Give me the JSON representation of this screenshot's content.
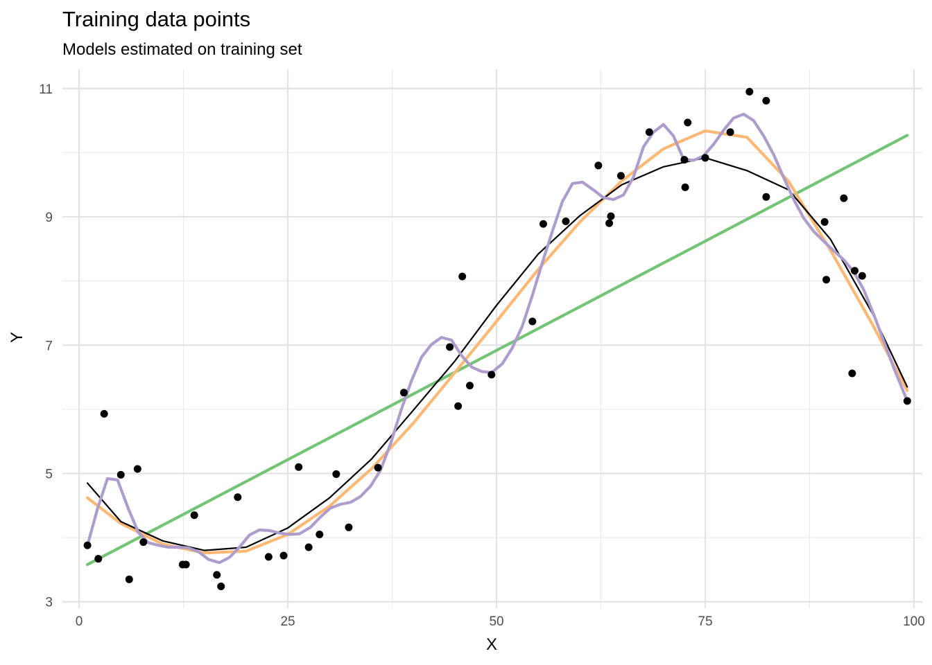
{
  "chart_data": {
    "type": "scatter",
    "title": "Training data points",
    "subtitle": "Models estimated on training set",
    "xlabel": "X",
    "ylabel": "Y",
    "xlim": [
      -2,
      101
    ],
    "ylim": [
      2.9,
      11.3
    ],
    "x_ticks": [
      0,
      25,
      50,
      75,
      100
    ],
    "y_ticks": [
      3,
      5,
      7,
      9,
      11
    ],
    "grid": true,
    "legend": "none",
    "points": {
      "x": [
        1,
        2.3,
        3,
        5,
        6,
        7,
        7.7,
        12.4,
        12.8,
        13.8,
        16.5,
        17,
        19,
        22.7,
        24.5,
        26.3,
        27.5,
        28.8,
        30.8,
        32.3,
        35.8,
        38.9,
        44.4,
        45.4,
        45.9,
        46.8,
        49.4,
        54.3,
        55.6,
        58.3,
        62.2,
        63.5,
        63.7,
        64.9,
        68.3,
        72.5,
        72.6,
        72.9,
        75,
        78,
        80.3,
        82.3,
        82.3,
        89.3,
        89.5,
        91.6,
        92.6,
        92.9,
        93.8,
        99.2
      ],
      "y": [
        3.88,
        3.67,
        5.93,
        4.98,
        3.35,
        5.07,
        3.93,
        3.58,
        3.58,
        4.35,
        3.42,
        3.24,
        4.63,
        3.7,
        3.72,
        5.1,
        3.85,
        4.05,
        4.99,
        4.16,
        5.09,
        6.26,
        6.97,
        6.05,
        8.07,
        6.37,
        6.54,
        7.37,
        8.89,
        8.93,
        9.8,
        8.9,
        9.01,
        9.64,
        10.32,
        9.89,
        9.46,
        10.47,
        9.92,
        10.32,
        10.95,
        10.81,
        9.31,
        8.92,
        8.02,
        9.29,
        6.56,
        8.16,
        8.08,
        6.13
      ]
    },
    "series": [
      {
        "color": "#74c476",
        "x": [
          1,
          99.2
        ],
        "y": [
          3.58,
          10.27
        ]
      },
      {
        "color": "#fdb974",
        "x": [
          1,
          5,
          10,
          15,
          20,
          25,
          30,
          35,
          40,
          45,
          50,
          55,
          60,
          65,
          70,
          75,
          80,
          85,
          90,
          95,
          99.2
        ],
        "y": [
          4.62,
          4.22,
          3.9,
          3.76,
          3.79,
          4.05,
          4.49,
          5.07,
          5.78,
          6.57,
          7.37,
          8.18,
          8.92,
          9.56,
          10.06,
          10.34,
          10.24,
          9.55,
          8.48,
          7.33,
          6.29
        ]
      },
      {
        "color": "#000000",
        "x": [
          1,
          5,
          10,
          15,
          20,
          25,
          30,
          35,
          40,
          45,
          50,
          55,
          60,
          65,
          70,
          75,
          80,
          85,
          90,
          95,
          99.2
        ],
        "y": [
          4.85,
          4.25,
          3.95,
          3.8,
          3.85,
          4.15,
          4.62,
          5.22,
          5.98,
          6.75,
          7.62,
          8.42,
          9.02,
          9.5,
          9.78,
          9.92,
          9.72,
          9.42,
          8.65,
          7.5,
          6.35
        ]
      },
      {
        "color": "#ae9ccd",
        "x": [
          1,
          2.2,
          3.4,
          4.6,
          5.9,
          7.1,
          8.3,
          9.5,
          10.7,
          11.9,
          13.1,
          14.3,
          15.5,
          16.8,
          18,
          19.2,
          20.4,
          21.6,
          22.8,
          24,
          25.2,
          26.4,
          27.7,
          28.9,
          30.1,
          31.3,
          32.5,
          33.7,
          34.9,
          36.1,
          37.3,
          38.6,
          39.8,
          41,
          42.2,
          43.4,
          44.6,
          45.8,
          47,
          48.2,
          49.4,
          50.7,
          51.9,
          53.1,
          54.3,
          55.5,
          56.7,
          57.9,
          59.1,
          60.3,
          61.6,
          62.8,
          64,
          65.2,
          66.4,
          67.6,
          68.8,
          70,
          71.2,
          72.4,
          73.6,
          74.8,
          76,
          77.2,
          78.4,
          79.6,
          80.8,
          82,
          83.2,
          84.4,
          85.6,
          86.8,
          88,
          89.2,
          90.4,
          91.6,
          92.8,
          94,
          95.2,
          96.4,
          97.6,
          99.2
        ],
        "y": [
          3.88,
          4.45,
          4.92,
          4.9,
          4.45,
          4.08,
          3.92,
          3.88,
          3.85,
          3.85,
          3.84,
          3.78,
          3.66,
          3.61,
          3.69,
          3.85,
          4.04,
          4.12,
          4.11,
          4.07,
          4.05,
          4.06,
          4.16,
          4.32,
          4.46,
          4.52,
          4.55,
          4.64,
          4.8,
          5.05,
          5.46,
          6.0,
          6.44,
          6.81,
          7.01,
          7.12,
          7.08,
          6.84,
          6.66,
          6.59,
          6.57,
          6.71,
          6.96,
          7.3,
          7.78,
          8.29,
          8.78,
          9.24,
          9.52,
          9.54,
          9.42,
          9.3,
          9.27,
          9.34,
          9.62,
          10.09,
          10.32,
          10.44,
          10.26,
          9.9,
          9.88,
          9.95,
          10.13,
          10.35,
          10.54,
          10.6,
          10.5,
          10.26,
          9.97,
          9.61,
          9.27,
          8.98,
          8.77,
          8.62,
          8.47,
          8.33,
          8.14,
          7.86,
          7.47,
          7.06,
          6.64,
          6.13
        ]
      }
    ]
  }
}
